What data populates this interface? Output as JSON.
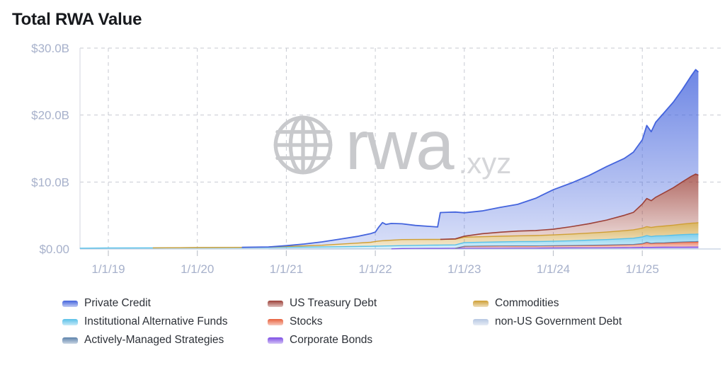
{
  "title": "Total RWA Value",
  "watermark": {
    "brand": "rwa",
    "suffix": ".xyz"
  },
  "style": {
    "axis_label_color": "#a7b1cb",
    "grid_color": "#c7cad2",
    "baseline_color": "#ccd5e6",
    "plot_border_color": "#dadde4",
    "tick_color": "#c0c4cc",
    "title_color": "#17191d",
    "legend_text_color": "#2d3138",
    "watermark_color": "#c8c9cc"
  },
  "legend": {
    "items": [
      "Private Credit",
      "US Treasury Debt",
      "Commodities",
      "Institutional Alternative Funds",
      "Stocks",
      "non-US Government Debt",
      "Actively-Managed Strategies",
      "Corporate Bonds"
    ]
  },
  "chart_data": {
    "type": "area",
    "stacked": true,
    "title": "Total RWA Value",
    "xlabel": "",
    "ylabel": "",
    "x_unit": "decimal_year",
    "xlim": [
      2018.68,
      2025.68
    ],
    "ylim": [
      0,
      30
    ],
    "grid": "dashed",
    "legend_position": "bottom",
    "y_ticks": [
      {
        "value": 0,
        "label": "$0.00"
      },
      {
        "value": 10,
        "label": "$10.0B"
      },
      {
        "value": 20,
        "label": "$20.0B"
      },
      {
        "value": 30,
        "label": "$30.0B"
      }
    ],
    "x_ticks": [
      {
        "value": 2019,
        "label": "1/1/19"
      },
      {
        "value": 2020,
        "label": "1/1/20"
      },
      {
        "value": 2021,
        "label": "1/1/21"
      },
      {
        "value": 2022,
        "label": "1/1/22"
      },
      {
        "value": 2023,
        "label": "1/1/23"
      },
      {
        "value": 2024,
        "label": "1/1/24"
      },
      {
        "value": 2025,
        "label": "1/1/25"
      }
    ],
    "x": [
      2018.68,
      2019.0,
      2019.5,
      2020.0,
      2020.5,
      2020.8,
      2021.0,
      2021.2,
      2021.4,
      2021.6,
      2021.8,
      2021.95,
      2022.0,
      2022.04,
      2022.08,
      2022.12,
      2022.18,
      2022.3,
      2022.45,
      2022.6,
      2022.7,
      2022.73,
      2022.9,
      2023.0,
      2023.2,
      2023.4,
      2023.6,
      2023.8,
      2024.0,
      2024.2,
      2024.4,
      2024.6,
      2024.8,
      2024.9,
      2025.0,
      2025.05,
      2025.1,
      2025.15,
      2025.25,
      2025.35,
      2025.45,
      2025.55,
      2025.6,
      2025.63
    ],
    "series": [
      {
        "name": "non-US Government Debt",
        "color": "#b6c7e2",
        "values": [
          0,
          0,
          0,
          0,
          0,
          0,
          0.01,
          0.01,
          0.01,
          0.01,
          0.02,
          0.02,
          0.02,
          0.02,
          0.02,
          0.02,
          0.02,
          0.02,
          0.02,
          0.02,
          0.02,
          0.02,
          0.03,
          0.03,
          0.03,
          0.03,
          0.03,
          0.03,
          0.04,
          0.04,
          0.04,
          0.04,
          0.04,
          0.04,
          0.05,
          0.05,
          0.05,
          0.05,
          0.05,
          0.05,
          0.05,
          0.05,
          0.05,
          0.05
        ]
      },
      {
        "name": "Corporate Bonds",
        "color": "#7c4ce4",
        "values": [
          0,
          0,
          0,
          0,
          0,
          0,
          0,
          0,
          0,
          0,
          0,
          0,
          0,
          0,
          0,
          0,
          0,
          0.04,
          0.06,
          0.07,
          0.07,
          0.07,
          0.08,
          0.1,
          0.1,
          0.1,
          0.11,
          0.11,
          0.12,
          0.13,
          0.14,
          0.15,
          0.17,
          0.18,
          0.2,
          0.2,
          0.2,
          0.21,
          0.22,
          0.23,
          0.24,
          0.25,
          0.25,
          0.25
        ]
      },
      {
        "name": "Stocks",
        "color": "#e8603c",
        "values": [
          0,
          0,
          0,
          0,
          0,
          0,
          0,
          0,
          0,
          0,
          0,
          0,
          0,
          0,
          0,
          0,
          0,
          0,
          0,
          0,
          0,
          0,
          0,
          0.25,
          0.28,
          0.3,
          0.3,
          0.3,
          0.3,
          0.32,
          0.34,
          0.36,
          0.4,
          0.42,
          0.5,
          0.7,
          0.55,
          0.6,
          0.6,
          0.65,
          0.7,
          0.72,
          0.73,
          0.75
        ]
      },
      {
        "name": "Actively-Managed Strategies",
        "color": "#5c81ab",
        "values": [
          0,
          0,
          0,
          0,
          0,
          0,
          0,
          0,
          0,
          0,
          0,
          0,
          0,
          0,
          0,
          0,
          0,
          0,
          0,
          0,
          0,
          0,
          0,
          0.03,
          0.03,
          0.03,
          0.04,
          0.04,
          0.04,
          0.04,
          0.05,
          0.05,
          0.05,
          0.05,
          0.06,
          0.06,
          0.06,
          0.06,
          0.07,
          0.07,
          0.07,
          0.08,
          0.08,
          0.08
        ]
      },
      {
        "name": "Institutional Alternative Funds",
        "color": "#58c0e8",
        "values": [
          0.12,
          0.15,
          0.17,
          0.2,
          0.22,
          0.23,
          0.25,
          0.28,
          0.3,
          0.33,
          0.36,
          0.38,
          0.4,
          0.41,
          0.42,
          0.43,
          0.44,
          0.45,
          0.46,
          0.48,
          0.49,
          0.5,
          0.5,
          0.55,
          0.57,
          0.6,
          0.62,
          0.63,
          0.65,
          0.7,
          0.75,
          0.8,
          0.88,
          0.92,
          1.0,
          1.0,
          1.0,
          1.02,
          1.04,
          1.06,
          1.08,
          1.1,
          1.1,
          1.1
        ]
      },
      {
        "name": "Commodities",
        "color": "#cf9f35",
        "values": [
          0,
          0,
          0,
          0.01,
          0.02,
          0.06,
          0.12,
          0.18,
          0.25,
          0.38,
          0.5,
          0.6,
          0.7,
          0.75,
          0.8,
          0.82,
          0.85,
          0.9,
          0.88,
          0.86,
          0.85,
          0.85,
          0.85,
          0.8,
          0.82,
          0.84,
          0.87,
          0.9,
          0.95,
          1.0,
          1.05,
          1.12,
          1.2,
          1.25,
          1.3,
          1.33,
          1.35,
          1.38,
          1.45,
          1.5,
          1.58,
          1.65,
          1.68,
          1.7
        ]
      },
      {
        "name": "US Treasury Debt",
        "color": "#9c4038",
        "values": [
          0,
          0,
          0,
          0,
          0,
          0,
          0,
          0,
          0,
          0,
          0,
          0,
          0,
          0,
          0,
          0,
          0,
          0,
          0,
          0,
          0,
          0,
          0.05,
          0.15,
          0.45,
          0.6,
          0.7,
          0.75,
          0.85,
          1.1,
          1.4,
          1.8,
          2.3,
          2.6,
          3.6,
          4.2,
          4.0,
          4.4,
          5.0,
          5.6,
          6.3,
          7.0,
          7.3,
          7.1
        ]
      },
      {
        "name": "Private Credit",
        "color": "#4464dd",
        "values": [
          0,
          0,
          0,
          0,
          0,
          0.02,
          0.12,
          0.27,
          0.5,
          0.75,
          1.0,
          1.3,
          1.4,
          2.1,
          2.7,
          2.4,
          2.5,
          2.35,
          2.1,
          1.95,
          1.85,
          4.0,
          4.0,
          3.5,
          3.4,
          3.7,
          4.0,
          4.8,
          5.9,
          6.5,
          7.2,
          8.0,
          8.5,
          9.0,
          9.6,
          10.9,
          10.3,
          11.2,
          12.0,
          12.8,
          13.8,
          15.0,
          15.6,
          15.4
        ]
      }
    ]
  }
}
